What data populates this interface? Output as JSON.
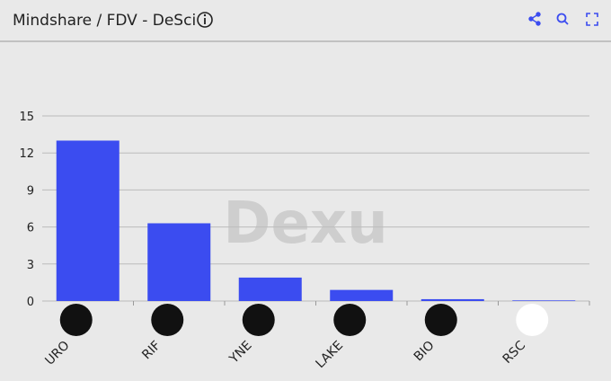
{
  "chart_data": {
    "type": "bar",
    "title": "Mindshare / FDV - DeSci",
    "watermark": "Dexu",
    "categories": [
      "URO",
      "RIF",
      "YNE",
      "LAKE",
      "BIO",
      "RSC"
    ],
    "values": [
      13.0,
      6.3,
      1.9,
      0.9,
      0.15,
      0.05
    ],
    "color": "#3b4cf0",
    "ylim": [
      0,
      15
    ],
    "yticks": [
      0,
      3,
      6,
      9,
      12,
      15
    ],
    "grid": true
  }
}
